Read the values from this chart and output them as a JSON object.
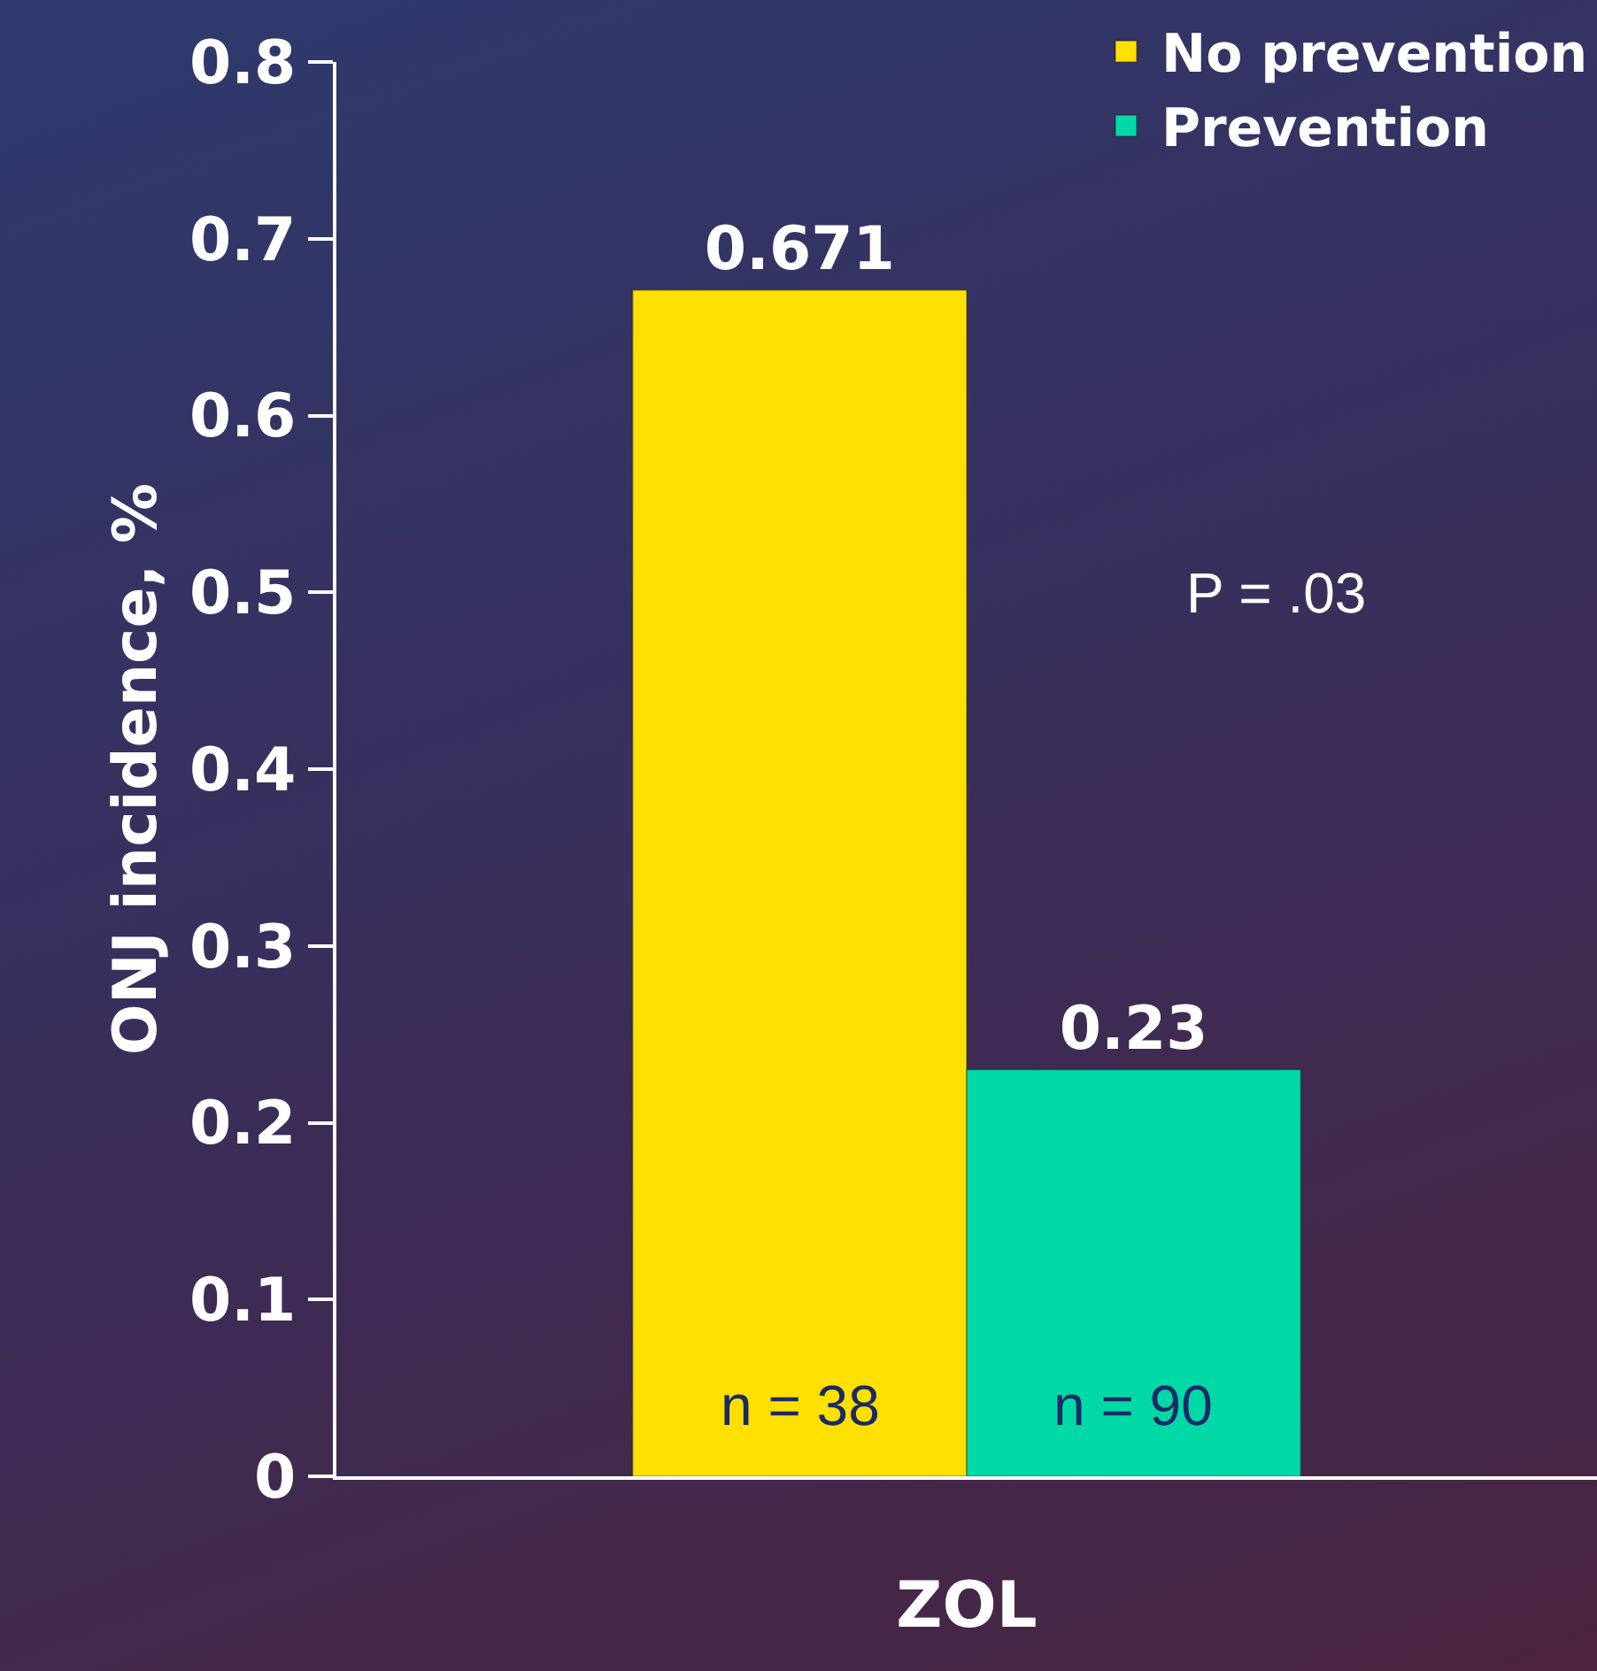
{
  "chart_data": {
    "type": "bar",
    "ylabel": "ONJ incidence, %",
    "categories": [
      "ZOL"
    ],
    "series": [
      {
        "name": "No prevention",
        "color": "#ffe000",
        "values": [
          0.671
        ]
      },
      {
        "name": "Prevention",
        "color": "#00d9a6",
        "values": [
          0.23
        ]
      }
    ],
    "ylim": [
      0,
      0.8
    ],
    "yticks": [
      {
        "value": 0,
        "label": "0"
      },
      0.1,
      0.2,
      0.3,
      0.4,
      0.5,
      0.6,
      0.7,
      0.8
    ],
    "data_labels": true,
    "grid": false,
    "legend": "top right",
    "annotations": [
      "P = .03",
      "n = 38",
      "n = 90"
    ]
  }
}
